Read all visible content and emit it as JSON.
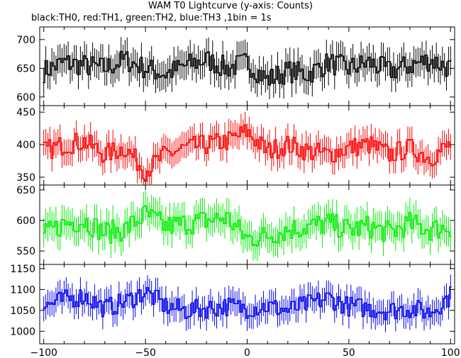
{
  "chart_data": {
    "type": "line",
    "title": "WAM T0 Lightcurve (y-axis: Counts)",
    "subtitle": "black:TH0, red:TH1, green:TH2, blue:TH3 ,1bin = 1s",
    "xlabel": "",
    "ylabel": "",
    "xlim": [
      -102,
      102
    ],
    "x_ticks": [
      -100,
      -50,
      0,
      50,
      100
    ],
    "x_tick_labels": [
      "−100",
      "−50",
      "0",
      "50",
      "100"
    ],
    "grid": false,
    "panels": [
      {
        "name": "TH0",
        "color": "#000000",
        "ylim": [
          585,
          722
        ],
        "y_ticks": [
          600,
          650,
          700
        ],
        "x": [
          -100,
          -90,
          -80,
          -70,
          -60,
          -50,
          -40,
          -30,
          -20,
          -10,
          0,
          10,
          20,
          30,
          40,
          50,
          60,
          70,
          80,
          90,
          100
        ],
        "values": [
          645,
          660,
          655,
          650,
          665,
          650,
          640,
          655,
          665,
          650,
          660,
          630,
          645,
          640,
          660,
          650,
          660,
          645,
          655,
          665,
          650
        ],
        "error": 25
      },
      {
        "name": "TH1",
        "color": "#ff0000",
        "ylim": [
          338,
          460
        ],
        "y_ticks": [
          350,
          400,
          450
        ],
        "x": [
          -100,
          -90,
          -80,
          -70,
          -60,
          -50,
          -40,
          -30,
          -20,
          -10,
          0,
          10,
          20,
          30,
          40,
          50,
          60,
          70,
          80,
          90,
          100
        ],
        "values": [
          390,
          400,
          405,
          385,
          395,
          360,
          385,
          395,
          400,
          405,
          420,
          390,
          400,
          390,
          385,
          395,
          400,
          385,
          395,
          380,
          400
        ],
        "error": 20
      },
      {
        "name": "TH2",
        "color": "#00ee00",
        "ylim": [
          528,
          658
        ],
        "y_ticks": [
          550,
          600,
          650
        ],
        "x": [
          -100,
          -90,
          -80,
          -70,
          -60,
          -50,
          -40,
          -30,
          -20,
          -10,
          0,
          10,
          20,
          30,
          40,
          50,
          60,
          70,
          80,
          90,
          100
        ],
        "values": [
          575,
          595,
          600,
          580,
          585,
          610,
          590,
          595,
          600,
          605,
          570,
          575,
          585,
          590,
          595,
          585,
          590,
          580,
          595,
          585,
          590
        ],
        "error": 24
      },
      {
        "name": "TH3",
        "color": "#0000ee",
        "ylim": [
          970,
          1160
        ],
        "y_ticks": [
          1000,
          1050,
          1100,
          1150
        ],
        "x": [
          -100,
          -90,
          -80,
          -70,
          -60,
          -50,
          -40,
          -30,
          -20,
          -10,
          0,
          10,
          20,
          30,
          40,
          50,
          60,
          70,
          80,
          90,
          100
        ],
        "values": [
          1060,
          1075,
          1085,
          1055,
          1070,
          1095,
          1060,
          1050,
          1055,
          1060,
          1055,
          1060,
          1050,
          1065,
          1080,
          1060,
          1055,
          1050,
          1055,
          1045,
          1085
        ],
        "error": 30
      }
    ]
  }
}
